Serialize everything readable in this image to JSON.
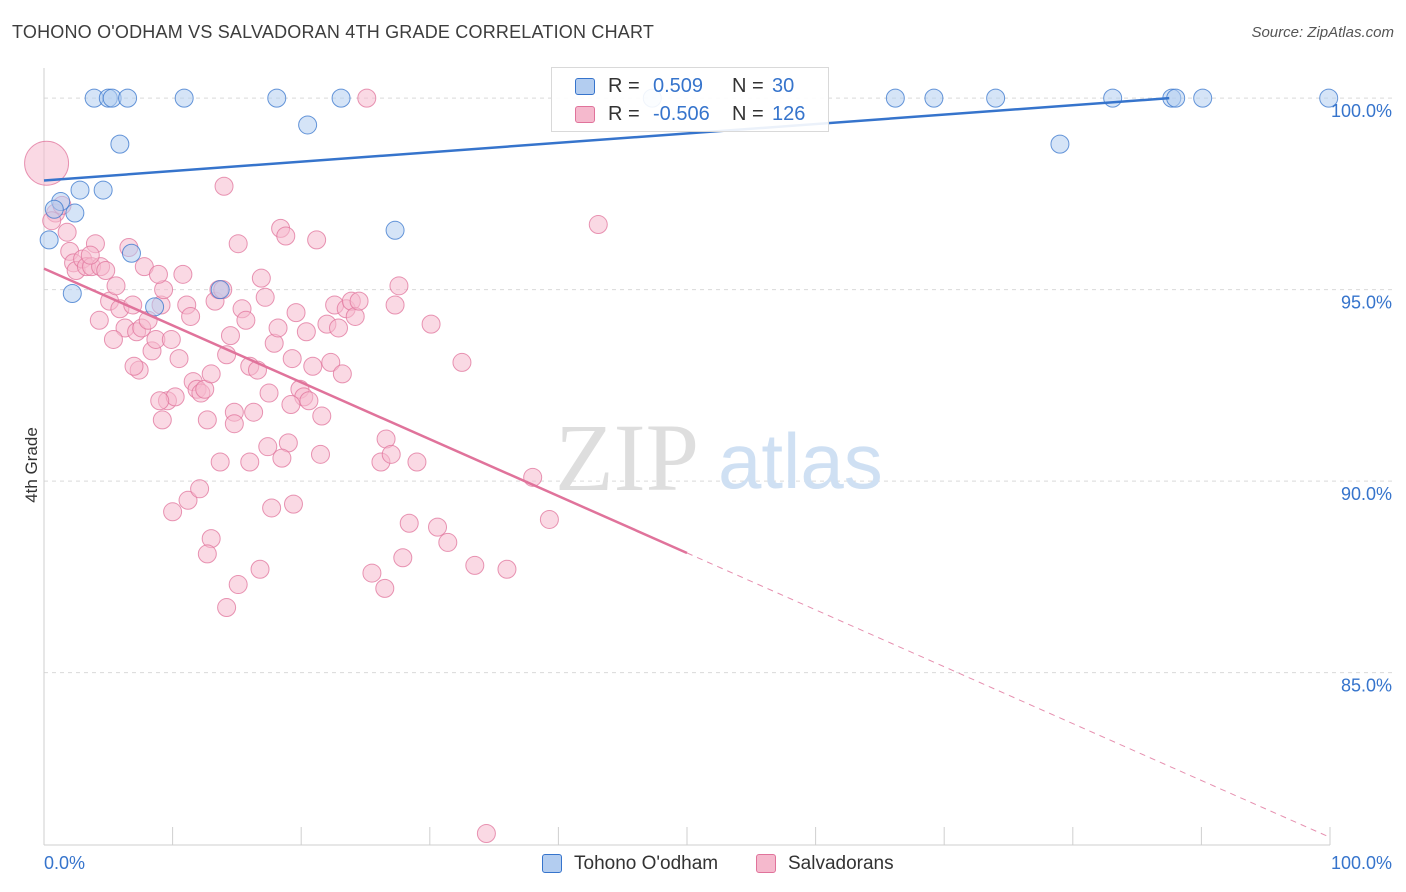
{
  "title": "TOHONO O'ODHAM VS SALVADORAN 4TH GRADE CORRELATION CHART",
  "source": "Source: ZipAtlas.com",
  "watermark": {
    "zip": "ZIP",
    "atlas": "atlas"
  },
  "colors": {
    "blue": "#3674cc",
    "blue_fill": "#b3cdf0",
    "pink": "#e0739b",
    "pink_fill": "#f5b9cd",
    "grid": "#d9d9d9",
    "tick_label": "#3674cc"
  },
  "legend": {
    "tohono": {
      "r_label": "R =",
      "r_value": "0.509",
      "n_label": "N =",
      "n_value": "30"
    },
    "salvadoran": {
      "r_label": "R =",
      "r_value": "-0.506",
      "n_label": "N =",
      "n_value": "126"
    },
    "bottom": {
      "tohono": "Tohono O'odham",
      "salvadoran": "Salvadorans"
    }
  },
  "chart_data": {
    "type": "scatter",
    "title": "TOHONO O'ODHAM VS SALVADORAN 4TH GRADE CORRELATION CHART",
    "xlabel": "",
    "ylabel": "4th Grade",
    "xlim": [
      0,
      100
    ],
    "ylim": [
      80.5,
      100.5
    ],
    "x_tick_labels": [
      "0.0%",
      "100.0%"
    ],
    "y_ticks": [
      85,
      90,
      95,
      100
    ],
    "y_tick_labels": [
      "85.0%",
      "90.0%",
      "95.0%",
      "100.0%"
    ],
    "grid": true,
    "legend_position": "top-center",
    "series": [
      {
        "name": "Tohono O'odham",
        "color": "#3674cc",
        "trend": {
          "x0": 0,
          "y0": 97.85,
          "x1": 87.5,
          "y1": 100.0,
          "dashed_after": null
        },
        "points": [
          {
            "x": 3.9,
            "y": 100.0
          },
          {
            "x": 5.0,
            "y": 100.0
          },
          {
            "x": 5.3,
            "y": 100.0
          },
          {
            "x": 6.5,
            "y": 100.0
          },
          {
            "x": 10.9,
            "y": 100.0
          },
          {
            "x": 18.1,
            "y": 100.0
          },
          {
            "x": 23.1,
            "y": 100.0
          },
          {
            "x": 47.3,
            "y": 100.0
          },
          {
            "x": 66.2,
            "y": 100.0
          },
          {
            "x": 69.2,
            "y": 100.0
          },
          {
            "x": 74.0,
            "y": 100.0
          },
          {
            "x": 83.1,
            "y": 100.0
          },
          {
            "x": 87.7,
            "y": 100.0
          },
          {
            "x": 88.0,
            "y": 100.0
          },
          {
            "x": 90.1,
            "y": 100.0
          },
          {
            "x": 99.9,
            "y": 100.0
          },
          {
            "x": 20.5,
            "y": 99.3
          },
          {
            "x": 5.9,
            "y": 98.8
          },
          {
            "x": 79.0,
            "y": 98.8
          },
          {
            "x": 2.8,
            "y": 97.6
          },
          {
            "x": 4.6,
            "y": 97.6
          },
          {
            "x": 1.3,
            "y": 97.3
          },
          {
            "x": 0.8,
            "y": 97.1
          },
          {
            "x": 2.4,
            "y": 97.0
          },
          {
            "x": 0.4,
            "y": 96.3
          },
          {
            "x": 27.3,
            "y": 96.55
          },
          {
            "x": 6.8,
            "y": 95.95
          },
          {
            "x": 13.7,
            "y": 95.0
          },
          {
            "x": 8.6,
            "y": 94.55
          },
          {
            "x": 2.2,
            "y": 94.9
          }
        ]
      },
      {
        "name": "Salvadorans",
        "color": "#e0739b",
        "trend": {
          "x0": 0,
          "y0": 95.55,
          "x1": 100,
          "y1": 80.7,
          "dashed_after": 50
        },
        "points": [
          {
            "x": 0.2,
            "y": 98.3
          },
          {
            "x": 0.9,
            "y": 97.0
          },
          {
            "x": 1.4,
            "y": 97.2
          },
          {
            "x": 0.6,
            "y": 96.8
          },
          {
            "x": 1.8,
            "y": 96.5
          },
          {
            "x": 2.0,
            "y": 96.0
          },
          {
            "x": 2.3,
            "y": 95.7
          },
          {
            "x": 2.5,
            "y": 95.5
          },
          {
            "x": 3.0,
            "y": 95.8
          },
          {
            "x": 3.3,
            "y": 95.6
          },
          {
            "x": 3.7,
            "y": 95.6
          },
          {
            "x": 4.0,
            "y": 96.2
          },
          {
            "x": 4.4,
            "y": 95.6
          },
          {
            "x": 4.8,
            "y": 95.5
          },
          {
            "x": 5.1,
            "y": 94.7
          },
          {
            "x": 5.6,
            "y": 95.1
          },
          {
            "x": 5.9,
            "y": 94.5
          },
          {
            "x": 6.3,
            "y": 94.0
          },
          {
            "x": 6.6,
            "y": 96.1
          },
          {
            "x": 6.9,
            "y": 94.6
          },
          {
            "x": 7.2,
            "y": 93.9
          },
          {
            "x": 7.6,
            "y": 94.0
          },
          {
            "x": 7.8,
            "y": 95.6
          },
          {
            "x": 8.1,
            "y": 94.2
          },
          {
            "x": 8.4,
            "y": 93.4
          },
          {
            "x": 8.7,
            "y": 93.7
          },
          {
            "x": 9.1,
            "y": 94.6
          },
          {
            "x": 9.3,
            "y": 95.0
          },
          {
            "x": 9.6,
            "y": 92.1
          },
          {
            "x": 9.9,
            "y": 93.7
          },
          {
            "x": 10.2,
            "y": 92.2
          },
          {
            "x": 10.5,
            "y": 93.2
          },
          {
            "x": 10.8,
            "y": 95.4
          },
          {
            "x": 11.1,
            "y": 94.6
          },
          {
            "x": 11.4,
            "y": 94.3
          },
          {
            "x": 11.6,
            "y": 92.6
          },
          {
            "x": 11.9,
            "y": 92.4
          },
          {
            "x": 12.2,
            "y": 92.3
          },
          {
            "x": 12.5,
            "y": 92.4
          },
          {
            "x": 12.7,
            "y": 91.6
          },
          {
            "x": 13.0,
            "y": 92.8
          },
          {
            "x": 13.3,
            "y": 94.7
          },
          {
            "x": 13.6,
            "y": 95.0
          },
          {
            "x": 13.9,
            "y": 95.0
          },
          {
            "x": 14.2,
            "y": 93.3
          },
          {
            "x": 14.5,
            "y": 93.8
          },
          {
            "x": 14.8,
            "y": 91.8
          },
          {
            "x": 15.1,
            "y": 96.2
          },
          {
            "x": 15.4,
            "y": 94.5
          },
          {
            "x": 15.7,
            "y": 94.2
          },
          {
            "x": 16.0,
            "y": 93.0
          },
          {
            "x": 16.3,
            "y": 91.8
          },
          {
            "x": 16.6,
            "y": 92.9
          },
          {
            "x": 16.9,
            "y": 95.3
          },
          {
            "x": 17.2,
            "y": 94.8
          },
          {
            "x": 17.5,
            "y": 92.3
          },
          {
            "x": 17.9,
            "y": 93.6
          },
          {
            "x": 18.2,
            "y": 94.0
          },
          {
            "x": 18.4,
            "y": 96.6
          },
          {
            "x": 18.8,
            "y": 96.4
          },
          {
            "x": 19.0,
            "y": 91.0
          },
          {
            "x": 19.3,
            "y": 93.2
          },
          {
            "x": 19.6,
            "y": 94.4
          },
          {
            "x": 19.9,
            "y": 92.4
          },
          {
            "x": 20.2,
            "y": 92.2
          },
          {
            "x": 20.6,
            "y": 92.1
          },
          {
            "x": 20.9,
            "y": 93.0
          },
          {
            "x": 21.2,
            "y": 96.3
          },
          {
            "x": 21.6,
            "y": 91.7
          },
          {
            "x": 22.0,
            "y": 94.1
          },
          {
            "x": 22.3,
            "y": 93.1
          },
          {
            "x": 22.6,
            "y": 94.6
          },
          {
            "x": 22.9,
            "y": 94.0
          },
          {
            "x": 23.2,
            "y": 92.8
          },
          {
            "x": 23.5,
            "y": 94.5
          },
          {
            "x": 23.9,
            "y": 94.7
          },
          {
            "x": 24.2,
            "y": 94.3
          },
          {
            "x": 24.5,
            "y": 94.7
          },
          {
            "x": 25.1,
            "y": 100.0
          },
          {
            "x": 25.5,
            "y": 87.6
          },
          {
            "x": 26.2,
            "y": 90.5
          },
          {
            "x": 26.6,
            "y": 91.1
          },
          {
            "x": 27.0,
            "y": 90.7
          },
          {
            "x": 27.3,
            "y": 94.6
          },
          {
            "x": 27.6,
            "y": 95.1
          },
          {
            "x": 27.9,
            "y": 88.0
          },
          {
            "x": 28.4,
            "y": 88.9
          },
          {
            "x": 29.0,
            "y": 90.5
          },
          {
            "x": 30.1,
            "y": 94.1
          },
          {
            "x": 30.6,
            "y": 88.8
          },
          {
            "x": 31.4,
            "y": 88.4
          },
          {
            "x": 32.5,
            "y": 93.1
          },
          {
            "x": 33.5,
            "y": 87.8
          },
          {
            "x": 34.4,
            "y": 80.8
          },
          {
            "x": 36.0,
            "y": 87.7
          },
          {
            "x": 38.0,
            "y": 90.1
          },
          {
            "x": 39.3,
            "y": 89.0
          },
          {
            "x": 43.1,
            "y": 96.7
          },
          {
            "x": 9.0,
            "y": 92.1
          },
          {
            "x": 11.2,
            "y": 89.5
          },
          {
            "x": 12.1,
            "y": 89.8
          },
          {
            "x": 13.0,
            "y": 88.5
          },
          {
            "x": 13.7,
            "y": 90.5
          },
          {
            "x": 14.2,
            "y": 86.7
          },
          {
            "x": 16.0,
            "y": 90.5
          },
          {
            "x": 16.8,
            "y": 87.7
          },
          {
            "x": 17.4,
            "y": 90.9
          },
          {
            "x": 17.7,
            "y": 89.3
          },
          {
            "x": 18.5,
            "y": 90.6
          },
          {
            "x": 19.2,
            "y": 92.0
          },
          {
            "x": 20.4,
            "y": 93.9
          },
          {
            "x": 21.5,
            "y": 90.7
          },
          {
            "x": 26.5,
            "y": 87.2
          },
          {
            "x": 14.8,
            "y": 91.5
          },
          {
            "x": 9.2,
            "y": 91.6
          },
          {
            "x": 3.6,
            "y": 95.9
          },
          {
            "x": 5.4,
            "y": 93.7
          },
          {
            "x": 7.4,
            "y": 92.9
          },
          {
            "x": 7.0,
            "y": 93.0
          },
          {
            "x": 12.7,
            "y": 88.1
          },
          {
            "x": 15.1,
            "y": 87.3
          },
          {
            "x": 10.0,
            "y": 89.2
          },
          {
            "x": 19.4,
            "y": 89.4
          },
          {
            "x": 8.9,
            "y": 95.4
          },
          {
            "x": 4.3,
            "y": 94.2
          },
          {
            "x": 14.0,
            "y": 97.7
          }
        ]
      }
    ]
  }
}
